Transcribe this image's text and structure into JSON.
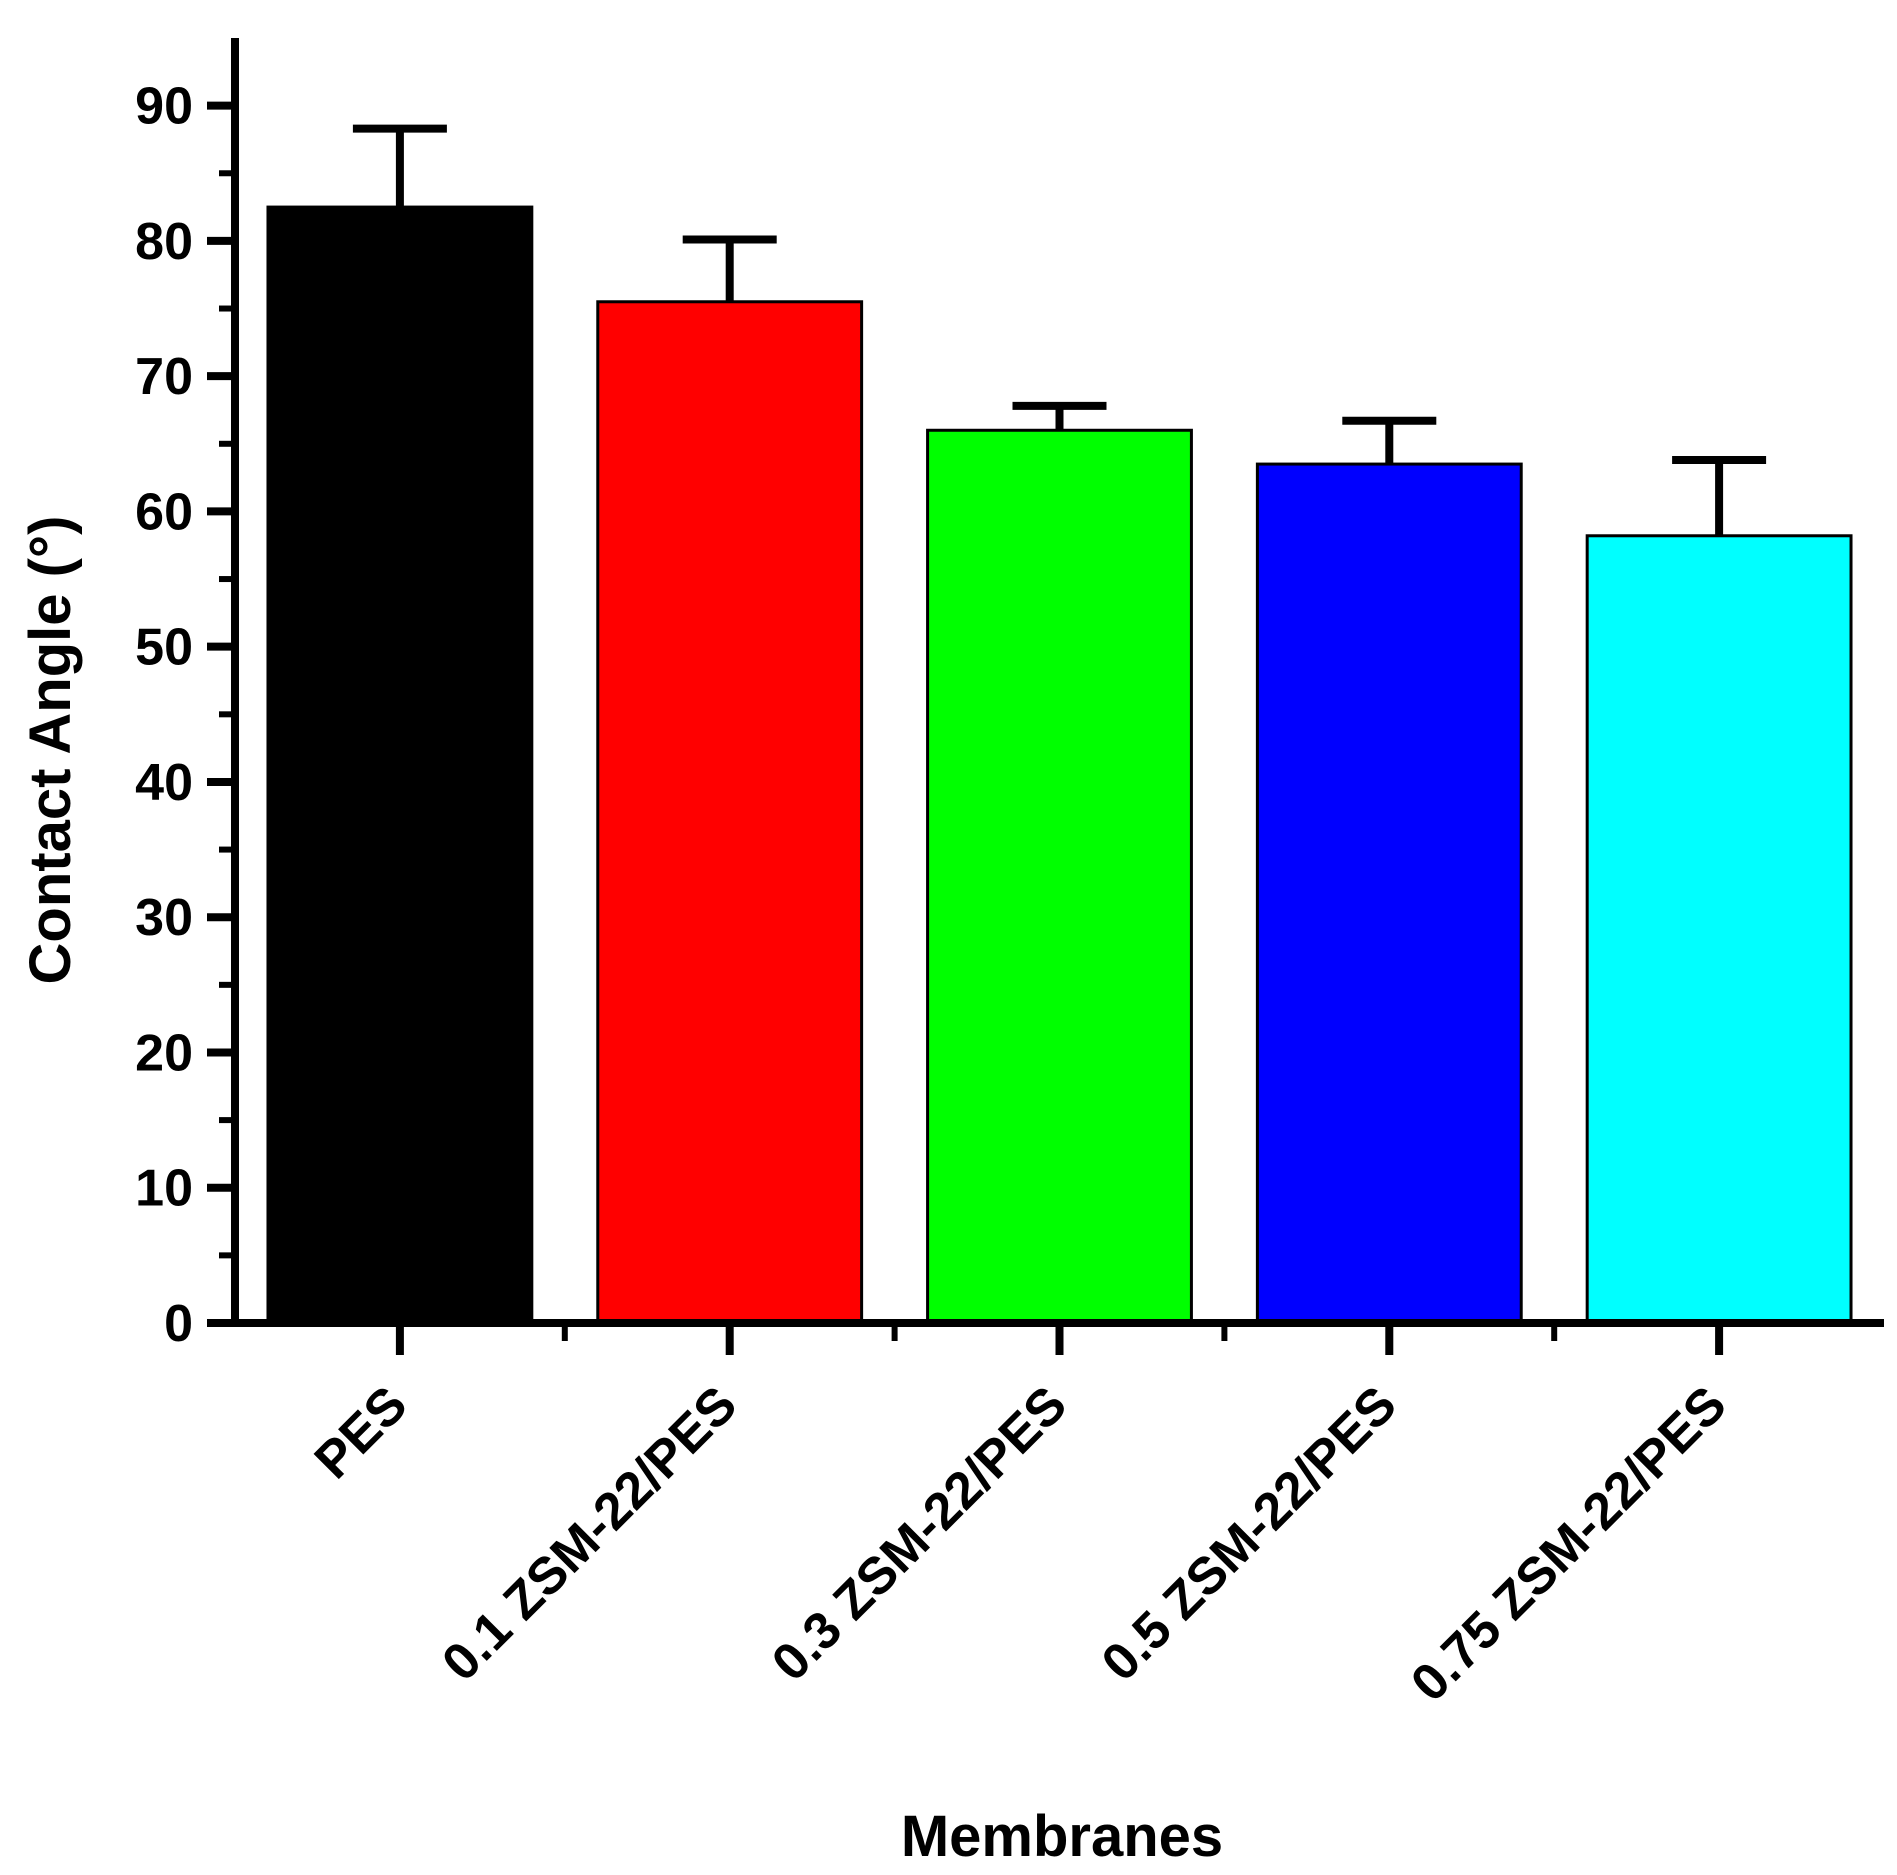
{
  "chart_data": {
    "type": "bar",
    "categories": [
      "PES",
      "0.1 ZSM-22/PES",
      "0.3 ZSM-22/PES",
      "0.5 ZSM-22/PES",
      "0.75 ZSM-22/PES"
    ],
    "values": [
      82.5,
      75.5,
      66.0,
      63.5,
      58.2
    ],
    "error_plus": [
      5.8,
      4.6,
      1.8,
      3.2,
      5.6
    ],
    "colors": [
      "#000000",
      "#ff0000",
      "#00ff00",
      "#0000ff",
      "#00ffff"
    ],
    "xlabel": "Membranes",
    "ylabel": "Contact Angle (°)",
    "ylim": [
      0,
      95
    ],
    "yticks": [
      0,
      10,
      20,
      30,
      40,
      50,
      60,
      70,
      80,
      90
    ],
    "grid": false,
    "legend": "none"
  }
}
